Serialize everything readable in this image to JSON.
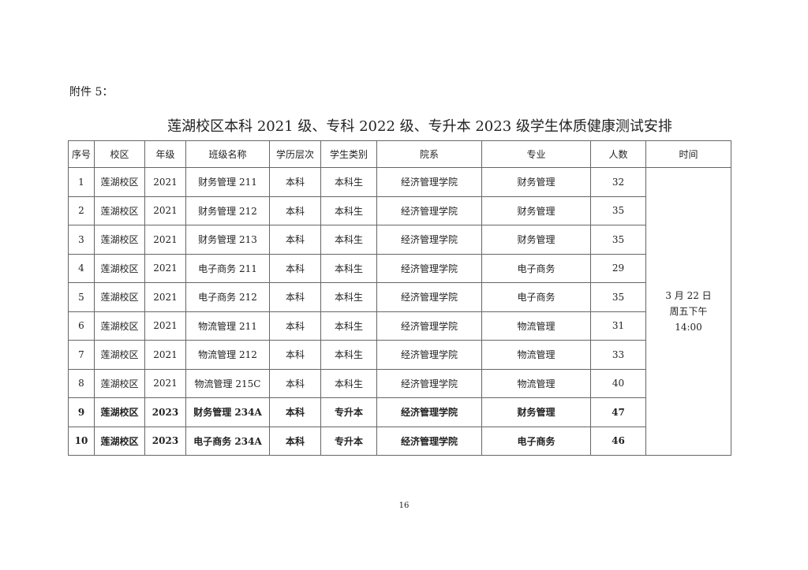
{
  "attachment": "附件 5：",
  "title": "莲湖校区本科 2021 级、专科 2022 级、专升本 2023 级学生体质健康测试安排",
  "headers": [
    "序号",
    "校区",
    "年级",
    "班级名称",
    "学历层次",
    "学生类别",
    "院系",
    "专业",
    "人数",
    "时间"
  ],
  "rows": [
    [
      "1",
      "莲湖校区",
      "2021",
      "财务管理 211",
      "本科",
      "本科生",
      "经济管理学院",
      "财务管理",
      "32"
    ],
    [
      "2",
      "莲湖校区",
      "2021",
      "财务管理 212",
      "本科",
      "本科生",
      "经济管理学院",
      "财务管理",
      "35"
    ],
    [
      "3",
      "莲湖校区",
      "2021",
      "财务管理 213",
      "本科",
      "本科生",
      "经济管理学院",
      "财务管理",
      "35"
    ],
    [
      "4",
      "莲湖校区",
      "2021",
      "电子商务 211",
      "本科",
      "本科生",
      "经济管理学院",
      "电子商务",
      "29"
    ],
    [
      "5",
      "莲湖校区",
      "2021",
      "电子商务 212",
      "本科",
      "本科生",
      "经济管理学院",
      "电子商务",
      "35"
    ],
    [
      "6",
      "莲湖校区",
      "2021",
      "物流管理 211",
      "本科",
      "本科生",
      "经济管理学院",
      "物流管理",
      "31"
    ],
    [
      "7",
      "莲湖校区",
      "2021",
      "物流管理 212",
      "本科",
      "本科生",
      "经济管理学院",
      "物流管理",
      "33"
    ],
    [
      "8",
      "莲湖校区",
      "2021",
      "物流管理 215C",
      "本科",
      "本科生",
      "经济管理学院",
      "物流管理",
      "40"
    ],
    [
      "9",
      "莲湖校区",
      "2023",
      "财务管理 234A",
      "本科",
      "专升本",
      "经济管理学院",
      "财务管理",
      "47"
    ],
    [
      "10",
      "莲湖校区",
      "2023",
      "电子商务 234A",
      "本科",
      "专升本",
      "经济管理学院",
      "电子商务",
      "46"
    ]
  ],
  "time": {
    "line1": "3 月 22 日",
    "line2": "周五下午",
    "line3": "14:00"
  },
  "page_number": "16"
}
